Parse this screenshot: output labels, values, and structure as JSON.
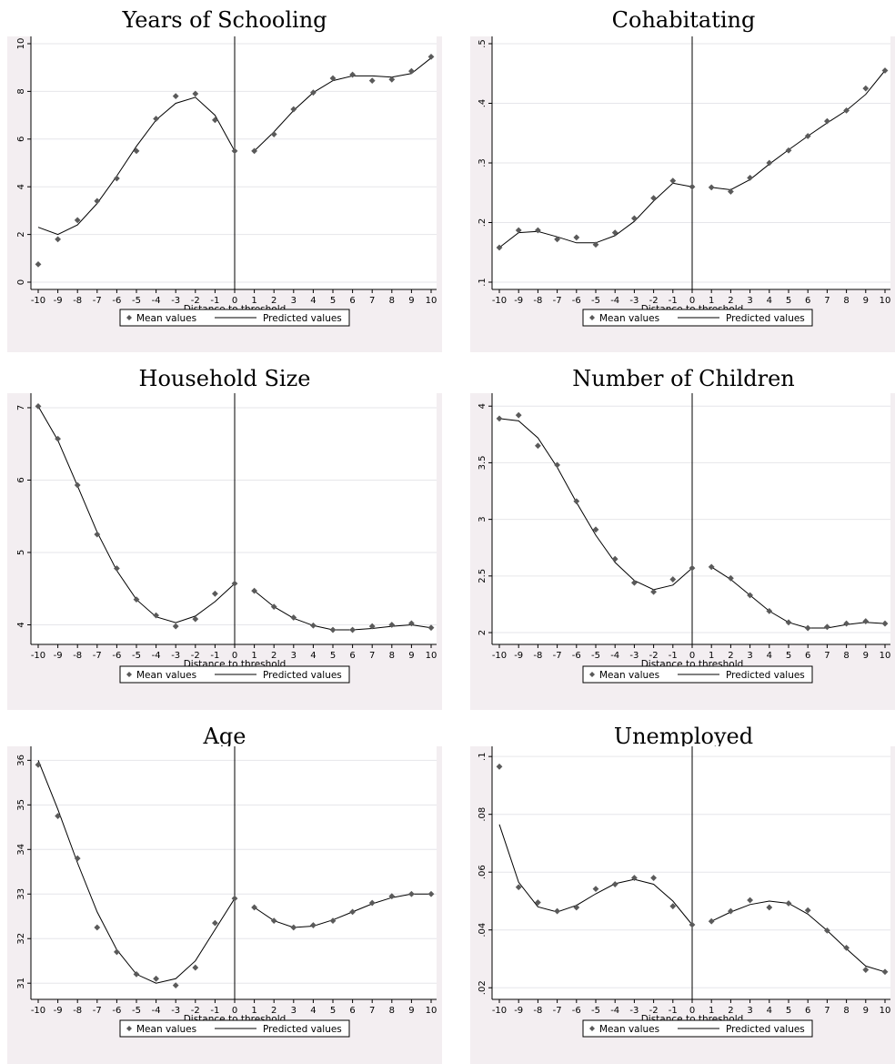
{
  "legend": {
    "markers_label": "Mean values",
    "line_label": "Predicted values"
  },
  "xlabel": "Distance to threshold",
  "chart_data": [
    {
      "type": "scatter",
      "title": "Years of Schooling",
      "ylim": [
        0,
        10
      ],
      "yticks": [
        0,
        2,
        4,
        6,
        8,
        10
      ],
      "ytick_labels": [
        "0",
        "2",
        "4",
        "6",
        "8",
        "10"
      ],
      "xticks": [
        -10,
        -9,
        -8,
        -7,
        -6,
        -5,
        -4,
        -3,
        -2,
        -1,
        0,
        1,
        2,
        3,
        4,
        5,
        6,
        7,
        8,
        9,
        10
      ],
      "xlabel": "Distance to threshold",
      "grid": true,
      "cutoff": 0,
      "series": [
        {
          "name": "Mean values",
          "kind": "markers",
          "x": [
            -10,
            -9,
            -8,
            -7,
            -6,
            -5,
            -4,
            -3,
            -2,
            -1,
            0,
            1,
            2,
            3,
            4,
            5,
            6,
            7,
            8,
            9,
            10
          ],
          "y": [
            0.75,
            1.8,
            2.6,
            3.4,
            4.35,
            5.5,
            6.85,
            7.8,
            7.9,
            6.8,
            5.5,
            5.5,
            6.2,
            7.25,
            7.95,
            8.55,
            8.7,
            8.45,
            8.5,
            8.85,
            9.45
          ]
        },
        {
          "name": "Predicted values",
          "kind": "line",
          "segments": [
            {
              "x": [
                -10,
                -9,
                -8,
                -7,
                -6,
                -5,
                -4,
                -3,
                -2,
                -1,
                0
              ],
              "y": [
                2.3,
                2.0,
                2.4,
                3.3,
                4.45,
                5.7,
                6.8,
                7.5,
                7.75,
                7.0,
                5.5
              ]
            },
            {
              "x": [
                1,
                2,
                3,
                4,
                5,
                6,
                7,
                8,
                9,
                10
              ],
              "y": [
                5.5,
                6.3,
                7.2,
                7.95,
                8.45,
                8.65,
                8.65,
                8.6,
                8.75,
                9.4
              ]
            }
          ]
        }
      ]
    },
    {
      "type": "scatter",
      "title": "Cohabitating",
      "ylim": [
        0.1,
        0.5
      ],
      "yticks": [
        0.1,
        0.2,
        0.3,
        0.4,
        0.5
      ],
      "ytick_labels": [
        ".1",
        ".2",
        ".3",
        ".4",
        ".5"
      ],
      "xticks": [
        -10,
        -9,
        -8,
        -7,
        -6,
        -5,
        -4,
        -3,
        -2,
        -1,
        0,
        1,
        2,
        3,
        4,
        5,
        6,
        7,
        8,
        9,
        10
      ],
      "xlabel": "Distance to threshold",
      "grid": true,
      "cutoff": 0,
      "series": [
        {
          "name": "Mean values",
          "kind": "markers",
          "x": [
            -10,
            -9,
            -8,
            -7,
            -6,
            -5,
            -4,
            -3,
            -2,
            -1,
            0,
            1,
            2,
            3,
            4,
            5,
            6,
            7,
            8,
            9,
            10
          ],
          "y": [
            0.158,
            0.187,
            0.187,
            0.172,
            0.175,
            0.163,
            0.183,
            0.207,
            0.241,
            0.27,
            0.26,
            0.259,
            0.252,
            0.275,
            0.3,
            0.321,
            0.345,
            0.37,
            0.388,
            0.425,
            0.455
          ]
        },
        {
          "name": "Predicted values",
          "kind": "line",
          "segments": [
            {
              "x": [
                -10,
                -9,
                -8,
                -7,
                -6,
                -5,
                -4,
                -3,
                -2,
                -1,
                0
              ],
              "y": [
                0.158,
                0.183,
                0.185,
                0.176,
                0.166,
                0.166,
                0.178,
                0.202,
                0.236,
                0.266,
                0.26
              ]
            },
            {
              "x": [
                1,
                2,
                3,
                4,
                5,
                6,
                7,
                8,
                9,
                10
              ],
              "y": [
                0.259,
                0.255,
                0.272,
                0.298,
                0.322,
                0.345,
                0.367,
                0.388,
                0.415,
                0.455
              ]
            }
          ]
        }
      ]
    },
    {
      "type": "scatter",
      "title": "Household Size",
      "ylim": [
        3.83,
        7.1
      ],
      "yticks": [
        4,
        5,
        6,
        7
      ],
      "ytick_labels": [
        "4",
        "5",
        "6",
        "7"
      ],
      "xticks": [
        -10,
        -9,
        -8,
        -7,
        -6,
        -5,
        -4,
        -3,
        -2,
        -1,
        0,
        1,
        2,
        3,
        4,
        5,
        6,
        7,
        8,
        9,
        10
      ],
      "xlabel": "Distance to threshold",
      "grid": true,
      "cutoff": 0,
      "series": [
        {
          "name": "Mean values",
          "kind": "markers",
          "x": [
            -10,
            -9,
            -8,
            -7,
            -6,
            -5,
            -4,
            -3,
            -2,
            -1,
            0,
            1,
            2,
            3,
            4,
            5,
            6,
            7,
            8,
            9,
            10
          ],
          "y": [
            7.02,
            6.57,
            5.93,
            5.25,
            4.78,
            4.35,
            4.13,
            3.98,
            4.08,
            4.43,
            4.57,
            4.47,
            4.25,
            4.1,
            3.99,
            3.93,
            3.93,
            3.98,
            4.0,
            4.02,
            3.96
          ]
        },
        {
          "name": "Predicted values",
          "kind": "line",
          "segments": [
            {
              "x": [
                -10,
                -9,
                -8,
                -7,
                -6,
                -5,
                -4,
                -3,
                -2,
                -1,
                0
              ],
              "y": [
                7.02,
                6.55,
                5.92,
                5.28,
                4.75,
                4.35,
                4.11,
                4.03,
                4.12,
                4.32,
                4.57
              ]
            },
            {
              "x": [
                1,
                2,
                3,
                4,
                5,
                6,
                7,
                8,
                9,
                10
              ],
              "y": [
                4.47,
                4.25,
                4.09,
                3.99,
                3.93,
                3.93,
                3.95,
                3.98,
                4.0,
                3.96
              ]
            }
          ]
        }
      ]
    },
    {
      "type": "scatter",
      "title": "Number of Children",
      "ylim": [
        1.96,
        4.05
      ],
      "yticks": [
        2,
        2.5,
        3,
        3.5,
        4
      ],
      "ytick_labels": [
        "2",
        "2.5",
        "3",
        "3.5",
        "4"
      ],
      "xticks": [
        -10,
        -9,
        -8,
        -7,
        -6,
        -5,
        -4,
        -3,
        -2,
        -1,
        0,
        1,
        2,
        3,
        4,
        5,
        6,
        7,
        8,
        9,
        10
      ],
      "xlabel": "Distance to threshold",
      "grid": true,
      "cutoff": 0,
      "series": [
        {
          "name": "Mean values",
          "kind": "markers",
          "x": [
            -10,
            -9,
            -8,
            -7,
            -6,
            -5,
            -4,
            -3,
            -2,
            -1,
            0,
            1,
            2,
            3,
            4,
            5,
            6,
            7,
            8,
            9,
            10
          ],
          "y": [
            3.89,
            3.92,
            3.65,
            3.48,
            3.16,
            2.91,
            2.65,
            2.44,
            2.36,
            2.47,
            2.57,
            2.58,
            2.48,
            2.33,
            2.19,
            2.09,
            2.04,
            2.05,
            2.08,
            2.1,
            2.08
          ]
        },
        {
          "name": "Predicted values",
          "kind": "line",
          "segments": [
            {
              "x": [
                -10,
                -9,
                -8,
                -7,
                -6,
                -5,
                -4,
                -3,
                -2,
                -1,
                0
              ],
              "y": [
                3.89,
                3.87,
                3.72,
                3.46,
                3.15,
                2.86,
                2.62,
                2.46,
                2.38,
                2.42,
                2.57
              ]
            },
            {
              "x": [
                1,
                2,
                3,
                4,
                5,
                6,
                7,
                8,
                9,
                10
              ],
              "y": [
                2.58,
                2.47,
                2.33,
                2.19,
                2.09,
                2.04,
                2.04,
                2.07,
                2.09,
                2.08
              ]
            }
          ]
        }
      ]
    },
    {
      "type": "scatter",
      "title": "Age",
      "ylim": [
        30.8,
        36.15
      ],
      "yticks": [
        31,
        32,
        33,
        34,
        35,
        36
      ],
      "ytick_labels": [
        "31",
        "32",
        "33",
        "34",
        "35",
        "36"
      ],
      "xticks": [
        -10,
        -9,
        -8,
        -7,
        -6,
        -5,
        -4,
        -3,
        -2,
        -1,
        0,
        1,
        2,
        3,
        4,
        5,
        6,
        7,
        8,
        9,
        10
      ],
      "xlabel": "Distance to threshold",
      "grid": true,
      "cutoff": 0,
      "series": [
        {
          "name": "Mean values",
          "kind": "markers",
          "x": [
            -10,
            -9,
            -8,
            -7,
            -6,
            -5,
            -4,
            -3,
            -2,
            -1,
            0,
            1,
            2,
            3,
            4,
            5,
            6,
            7,
            8,
            9,
            10
          ],
          "y": [
            35.9,
            34.75,
            33.8,
            32.25,
            31.7,
            31.2,
            31.1,
            30.95,
            31.35,
            32.35,
            32.9,
            32.7,
            32.4,
            32.25,
            32.3,
            32.4,
            32.6,
            32.8,
            32.95,
            33.0,
            33.0
          ]
        },
        {
          "name": "Predicted values",
          "kind": "line",
          "segments": [
            {
              "x": [
                -10,
                -9,
                -8,
                -7,
                -6,
                -5,
                -4,
                -3,
                -2,
                -1,
                0
              ],
              "y": [
                36.0,
                34.9,
                33.7,
                32.6,
                31.75,
                31.2,
                31.0,
                31.1,
                31.5,
                32.2,
                32.9
              ]
            },
            {
              "x": [
                1,
                2,
                3,
                4,
                5,
                6,
                7,
                8,
                9,
                10
              ],
              "y": [
                32.7,
                32.4,
                32.25,
                32.28,
                32.42,
                32.6,
                32.78,
                32.92,
                33.0,
                33.0
              ]
            }
          ]
        }
      ]
    },
    {
      "type": "scatter",
      "title": "Unemployed",
      "ylim": [
        0.0185,
        0.101
      ],
      "yticks": [
        0.02,
        0.04,
        0.06,
        0.08,
        0.1
      ],
      "ytick_labels": [
        ".02",
        ".04",
        ".06",
        ".08",
        ".1"
      ],
      "xticks": [
        -10,
        -9,
        -8,
        -7,
        -6,
        -5,
        -4,
        -3,
        -2,
        -1,
        0,
        1,
        2,
        3,
        4,
        5,
        6,
        7,
        8,
        9,
        10
      ],
      "xlabel": "Distance to threshold",
      "grid": true,
      "cutoff": 0,
      "series": [
        {
          "name": "Mean values",
          "kind": "markers",
          "x": [
            -10,
            -9,
            -8,
            -7,
            -6,
            -5,
            -4,
            -3,
            -2,
            -1,
            0,
            1,
            2,
            3,
            4,
            5,
            6,
            7,
            8,
            9,
            10
          ],
          "y": [
            0.0965,
            0.0548,
            0.0495,
            0.0465,
            0.0478,
            0.0542,
            0.0558,
            0.058,
            0.058,
            0.0482,
            0.0418,
            0.043,
            0.0465,
            0.0503,
            0.0478,
            0.0492,
            0.0468,
            0.0398,
            0.0338,
            0.0262,
            0.0255
          ]
        },
        {
          "name": "Predicted values",
          "kind": "line",
          "segments": [
            {
              "x": [
                -10,
                -9,
                -8,
                -7,
                -6,
                -5,
                -4,
                -3,
                -2,
                -1,
                0
              ],
              "y": [
                0.0765,
                0.0565,
                0.048,
                0.0462,
                0.0485,
                0.0525,
                0.056,
                0.0575,
                0.0558,
                0.05,
                0.0418
              ]
            },
            {
              "x": [
                1,
                2,
                3,
                4,
                5,
                6,
                7,
                8,
                9,
                10
              ],
              "y": [
                0.043,
                0.0462,
                0.0488,
                0.05,
                0.0492,
                0.0455,
                0.0398,
                0.0335,
                0.0275,
                0.0255
              ]
            }
          ]
        }
      ]
    }
  ]
}
